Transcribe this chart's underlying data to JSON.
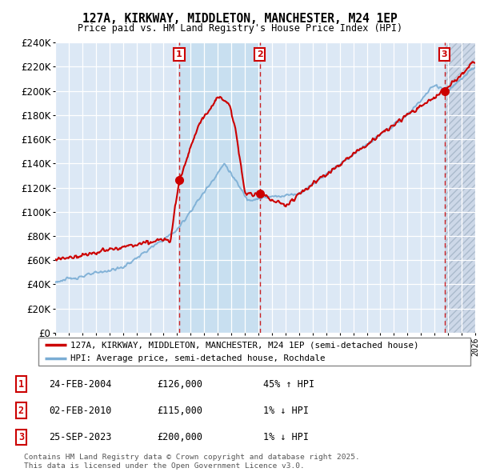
{
  "title1": "127A, KIRKWAY, MIDDLETON, MANCHESTER, M24 1EP",
  "title2": "Price paid vs. HM Land Registry's House Price Index (HPI)",
  "ylim": [
    0,
    240000
  ],
  "yticks": [
    0,
    20000,
    40000,
    60000,
    80000,
    100000,
    120000,
    140000,
    160000,
    180000,
    200000,
    220000,
    240000
  ],
  "legend_line1": "127A, KIRKWAY, MIDDLETON, MANCHESTER, M24 1EP (semi-detached house)",
  "legend_line2": "HPI: Average price, semi-detached house, Rochdale",
  "transactions": [
    {
      "num": 1,
      "date": "24-FEB-2004",
      "price": "£126,000",
      "hpi": "45% ↑ HPI",
      "year": 2004.15
    },
    {
      "num": 2,
      "date": "02-FEB-2010",
      "price": "£115,000",
      "hpi": "1% ↓ HPI",
      "year": 2010.09
    },
    {
      "num": 3,
      "date": "25-SEP-2023",
      "price": "£200,000",
      "hpi": "1% ↓ HPI",
      "year": 2023.73
    }
  ],
  "transaction_prices": [
    126000,
    115000,
    200000
  ],
  "footer": "Contains HM Land Registry data © Crown copyright and database right 2025.\nThis data is licensed under the Open Government Licence v3.0.",
  "hpi_color": "#7aadd4",
  "price_color": "#cc0000",
  "background_plot": "#dce8f5",
  "background_ownership": "#c8dff0",
  "background_hatch": "#cdd8e8",
  "grid_color": "#ffffff",
  "xmin": 1995,
  "xmax": 2026
}
